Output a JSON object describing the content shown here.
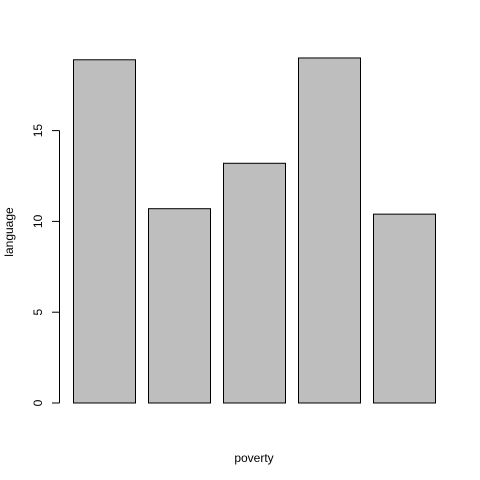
{
  "chart_data": {
    "type": "bar",
    "title": "",
    "xlabel": "poverty",
    "ylabel": "language",
    "categories": [
      "",
      "",
      "",
      "",
      ""
    ],
    "values": [
      18.9,
      10.7,
      13.2,
      19.0,
      10.4
    ],
    "ylim": [
      0,
      20
    ],
    "yticks": [
      0,
      5,
      10,
      15
    ],
    "grid": false,
    "colors": {
      "bar_fill": "#bebebe",
      "bar_stroke": "#000000",
      "axis": "#000000",
      "background": "#ffffff"
    }
  }
}
